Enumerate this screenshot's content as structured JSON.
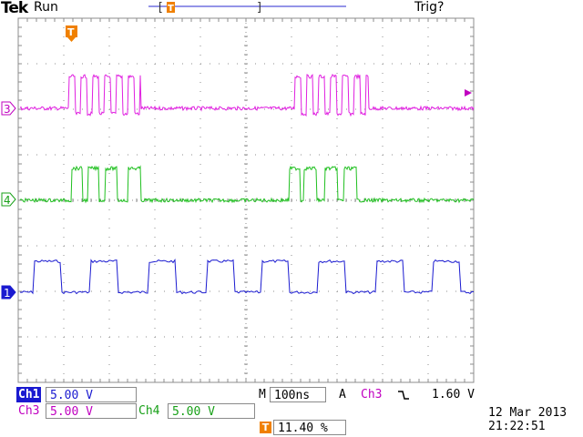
{
  "header": {
    "brand": "Tek",
    "run_state": "Run",
    "trigger_state": "Trig?"
  },
  "trigger_marker": {
    "label": "T"
  },
  "channels": [
    {
      "id": "3",
      "color": "#e020e0",
      "label": "3"
    },
    {
      "id": "4",
      "color": "#20c020",
      "label": "4"
    },
    {
      "id": "1",
      "color": "#1a1ad0",
      "label": "1"
    }
  ],
  "readouts": {
    "ch1": {
      "name": "Ch1",
      "value": "5.00 V"
    },
    "ch3": {
      "name": "Ch3",
      "value": "5.00 V"
    },
    "ch4": {
      "name": "Ch4",
      "value": "5.00 V"
    },
    "timebase": {
      "mode": "M",
      "value": "100ns"
    },
    "trigger": {
      "mode": "A",
      "source": "Ch3",
      "slope_icon": "falling-edge-icon",
      "level": "1.60 V"
    },
    "position": {
      "icon_label": "T",
      "value": "11.40 %"
    }
  },
  "datetime": {
    "date": "12 Mar  2013",
    "time": "21:22:51"
  },
  "colors": {
    "ch1": "#1a1ad0",
    "ch3": "#e020e0",
    "ch4": "#20c020",
    "trigger_orange": "#f08000",
    "grid": "#8c8c8c"
  }
}
